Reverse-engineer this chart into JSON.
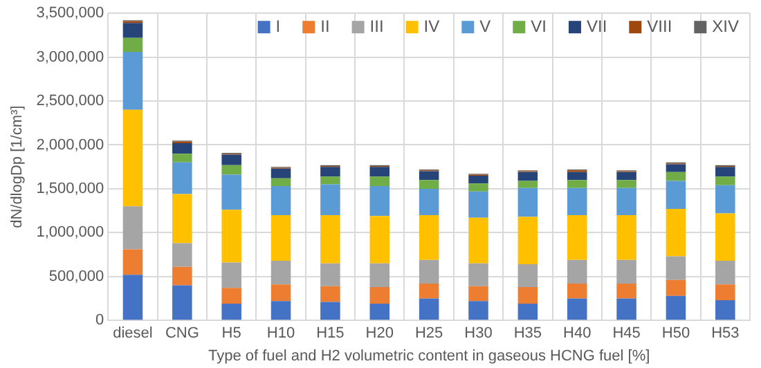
{
  "chart_data": {
    "type": "bar",
    "stacked": true,
    "xlabel": "Type of fuel and H2 volumetric content in gaseous HCNG fuel [%]",
    "ylabel": "dN/dlogDp [1/cm³]",
    "categories": [
      "diesel",
      "CNG",
      "H5",
      "H10",
      "H15",
      "H20",
      "H25",
      "H30",
      "H35",
      "H40",
      "H45",
      "H50",
      "H53"
    ],
    "ylim": [
      0,
      3500000
    ],
    "yticks": [
      {
        "value": 0,
        "label": "0"
      },
      {
        "value": 500000,
        "label": "500,000"
      },
      {
        "value": 1000000,
        "label": "1,000,000"
      },
      {
        "value": 1500000,
        "label": "1,500,000"
      },
      {
        "value": 2000000,
        "label": "2,000,000"
      },
      {
        "value": 2500000,
        "label": "2,500,000"
      },
      {
        "value": 3000000,
        "label": "3,000,000"
      },
      {
        "value": 3500000,
        "label": "3,500,000"
      }
    ],
    "grid": true,
    "legend": "top right",
    "series": [
      {
        "name": "I",
        "color": "#4472c4",
        "values": [
          520000,
          400000,
          190000,
          220000,
          210000,
          190000,
          250000,
          220000,
          190000,
          250000,
          250000,
          280000,
          230000
        ]
      },
      {
        "name": "II",
        "color": "#ed7d31",
        "values": [
          290000,
          210000,
          180000,
          190000,
          180000,
          190000,
          170000,
          170000,
          190000,
          170000,
          170000,
          180000,
          180000
        ]
      },
      {
        "name": "III",
        "color": "#a5a5a5",
        "values": [
          490000,
          270000,
          290000,
          270000,
          260000,
          270000,
          270000,
          260000,
          260000,
          270000,
          270000,
          270000,
          270000
        ]
      },
      {
        "name": "IV",
        "color": "#ffc000",
        "values": [
          1100000,
          560000,
          600000,
          520000,
          550000,
          540000,
          510000,
          520000,
          540000,
          510000,
          510000,
          540000,
          540000
        ]
      },
      {
        "name": "V",
        "color": "#5b9bd5",
        "values": [
          660000,
          360000,
          400000,
          330000,
          350000,
          340000,
          300000,
          300000,
          330000,
          310000,
          310000,
          320000,
          320000
        ]
      },
      {
        "name": "VI",
        "color": "#70ad47",
        "values": [
          160000,
          100000,
          110000,
          90000,
          90000,
          110000,
          100000,
          90000,
          80000,
          90000,
          90000,
          100000,
          100000
        ]
      },
      {
        "name": "VII",
        "color": "#264478",
        "values": [
          170000,
          120000,
          120000,
          110000,
          110000,
          110000,
          100000,
          90000,
          100000,
          90000,
          90000,
          90000,
          110000
        ]
      },
      {
        "name": "VIII",
        "color": "#9e480e",
        "values": [
          20000,
          20000,
          10000,
          10000,
          10000,
          10000,
          10000,
          10000,
          10000,
          20000,
          10000,
          10000,
          10000
        ]
      },
      {
        "name": "XIV",
        "color": "#636363",
        "values": [
          10000,
          10000,
          10000,
          10000,
          10000,
          10000,
          10000,
          10000,
          10000,
          10000,
          10000,
          10000,
          10000
        ]
      }
    ]
  }
}
